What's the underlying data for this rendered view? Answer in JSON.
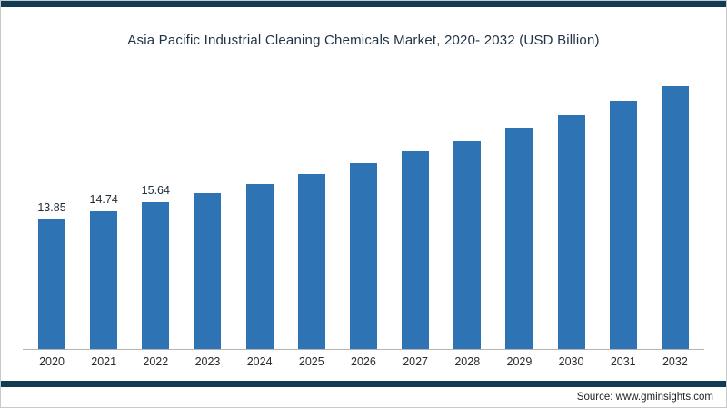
{
  "title": "Asia Pacific Industrial Cleaning Chemicals Market, 2020- 2032 (USD Billion)",
  "source": "Source: www.gminsights.com",
  "colors": {
    "bar": "#2e74b5",
    "frame": "#0f3b54",
    "axis": "#b3b3b3"
  },
  "chart_data": {
    "type": "bar",
    "title": "Asia Pacific Industrial Cleaning Chemicals Market, 2020- 2032 (USD Billion)",
    "categories": [
      "2020",
      "2021",
      "2022",
      "2023",
      "2024",
      "2025",
      "2026",
      "2027",
      "2028",
      "2029",
      "2030",
      "2031",
      "2032"
    ],
    "values": [
      13.85,
      14.74,
      15.64,
      16.6,
      17.65,
      18.7,
      19.85,
      21.05,
      22.3,
      23.6,
      25.0,
      26.5,
      28.1
    ],
    "data_labels": [
      "13.85",
      "14.74",
      "15.64",
      "",
      "",
      "",
      "",
      "",
      "",
      "",
      "",
      "",
      ""
    ],
    "xlabel": "",
    "ylabel": "",
    "ylim": [
      0,
      30
    ],
    "grid": false,
    "legend": false,
    "bar_color": "#2e74b5"
  }
}
